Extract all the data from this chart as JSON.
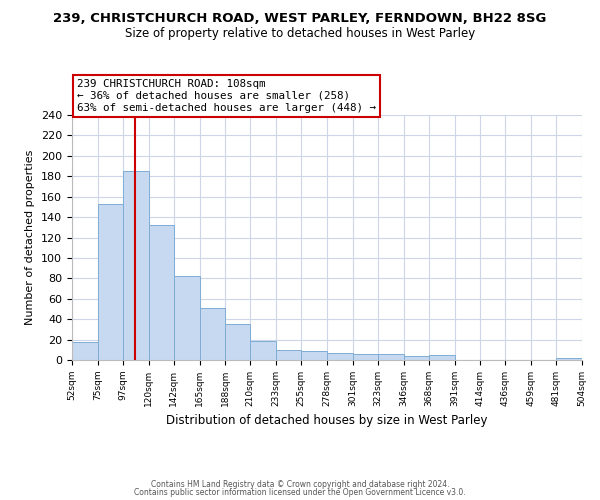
{
  "title": "239, CHRISTCHURCH ROAD, WEST PARLEY, FERNDOWN, BH22 8SG",
  "subtitle": "Size of property relative to detached houses in West Parley",
  "xlabel": "Distribution of detached houses by size in West Parley",
  "ylabel": "Number of detached properties",
  "bar_color": "#c6d9f0",
  "bar_edge_color": "#7fadd4",
  "vline_x": 108,
  "vline_color": "#cc0000",
  "annotation_title": "239 CHRISTCHURCH ROAD: 108sqm",
  "annotation_line1": "← 36% of detached houses are smaller (258)",
  "annotation_line2": "63% of semi-detached houses are larger (448) →",
  "annotation_box_color": "#ffffff",
  "annotation_box_edge": "#cc0000",
  "bin_edges": [
    52,
    75,
    97,
    120,
    142,
    165,
    188,
    210,
    233,
    255,
    278,
    301,
    323,
    346,
    368,
    391,
    414,
    436,
    459,
    481,
    504
  ],
  "bar_heights": [
    18,
    153,
    185,
    132,
    82,
    51,
    35,
    19,
    10,
    9,
    7,
    6,
    6,
    4,
    5,
    0,
    0,
    0,
    0,
    2
  ],
  "ylim": [
    0,
    240
  ],
  "yticks": [
    0,
    20,
    40,
    60,
    80,
    100,
    120,
    140,
    160,
    180,
    200,
    220,
    240
  ],
  "footer1": "Contains HM Land Registry data © Crown copyright and database right 2024.",
  "footer2": "Contains public sector information licensed under the Open Government Licence v3.0.",
  "background_color": "#ffffff",
  "grid_color": "#ccd6e8"
}
